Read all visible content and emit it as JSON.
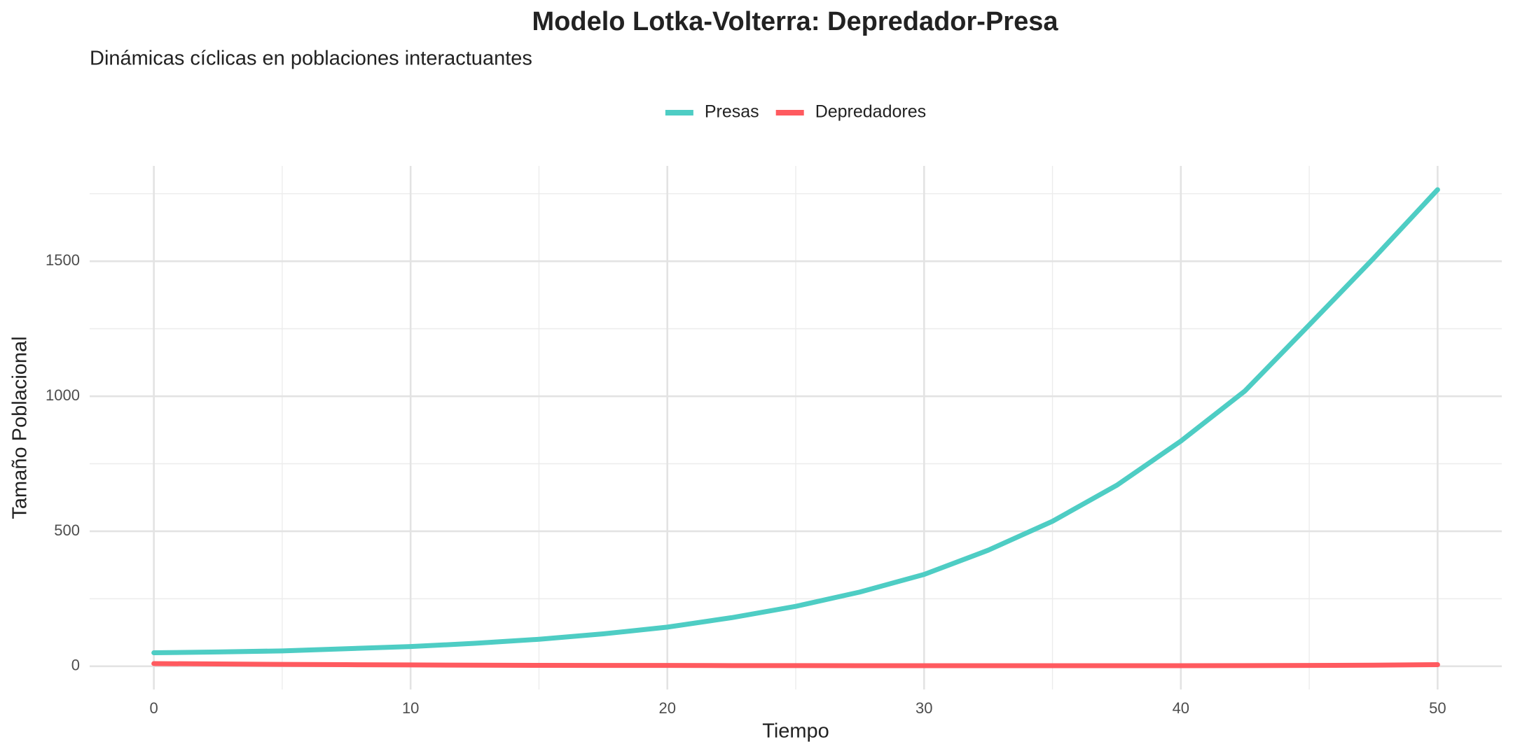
{
  "chart_data": {
    "type": "line",
    "title": "Modelo Lotka-Volterra: Depredador-Presa",
    "subtitle": "Dinámicas cíclicas en poblaciones interactuantes",
    "x_label": "Tiempo",
    "y_label": "Tamaño Poblacional",
    "x": [
      0,
      2.5,
      5,
      7.5,
      10,
      12.5,
      15,
      17.5,
      20,
      22.5,
      25,
      27.5,
      30,
      32.5,
      35,
      37.5,
      40,
      42.5,
      45,
      47.5,
      50
    ],
    "series": [
      {
        "name": "Presas",
        "color": "#4ECDC4",
        "values": [
          50,
          53,
          57,
          65,
          73,
          85,
          100,
          120,
          145,
          180,
          222,
          275,
          340,
          430,
          537,
          670,
          834,
          1020,
          1264,
          1510,
          1765
        ]
      },
      {
        "name": "Depredadores",
        "color": "#FF5A5F",
        "values": [
          10,
          8.5,
          7,
          6,
          5,
          4,
          3.5,
          3,
          3,
          2.5,
          2.5,
          2,
          2,
          2,
          2,
          2,
          2,
          2.5,
          3,
          4,
          6
        ]
      }
    ],
    "xlim": [
      -2.5,
      52.5
    ],
    "ylim": [
      -86,
      1853
    ],
    "xticks": [
      0,
      10,
      20,
      30,
      40,
      50
    ],
    "yticks": [
      0,
      500,
      1000,
      1500
    ],
    "grid": true,
    "legend": "top"
  }
}
